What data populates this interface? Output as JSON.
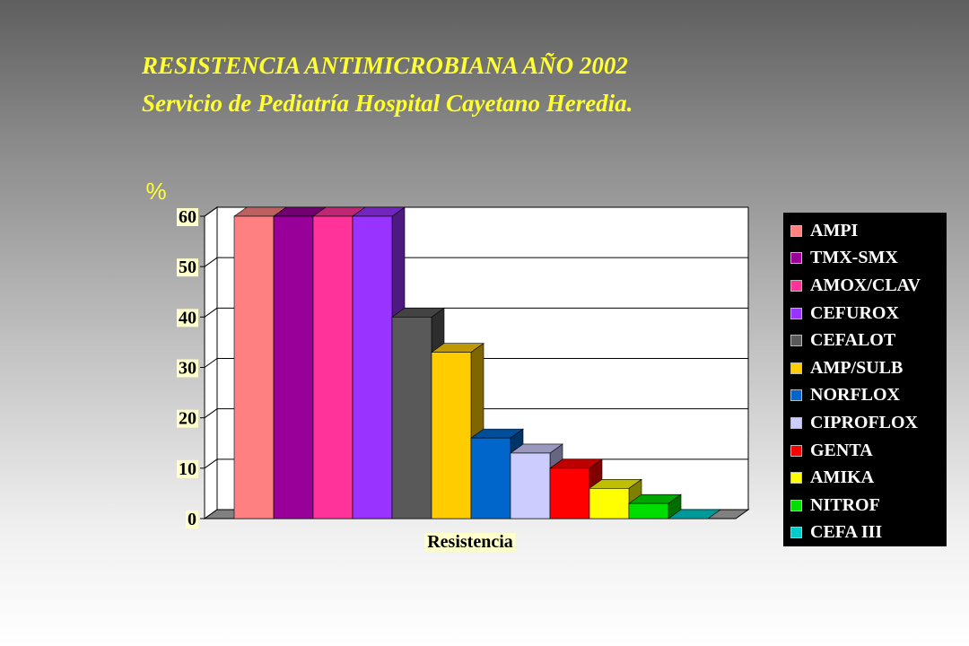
{
  "title": {
    "line1": "RESISTENCIA ANTIMICROBIANA AÑO 2002",
    "line2": "Servicio de Pediatría Hospital Cayetano Heredia."
  },
  "chart_data": {
    "type": "bar",
    "categories": [
      "Resistencia"
    ],
    "ylabel": "%",
    "xlabel": "",
    "ylim": [
      0,
      60
    ],
    "yticks": [
      0,
      10,
      20,
      30,
      40,
      50,
      60
    ],
    "grid": true,
    "legend_position": "right",
    "series": [
      {
        "name": "AMPI",
        "values": [
          60
        ],
        "color": "#ff8080"
      },
      {
        "name": "TMX-SMX",
        "values": [
          60
        ],
        "color": "#990099"
      },
      {
        "name": "AMOX/CLAV",
        "values": [
          60
        ],
        "color": "#ff3399"
      },
      {
        "name": "CEFUROX",
        "values": [
          60
        ],
        "color": "#9933ff"
      },
      {
        "name": "CEFALOT",
        "values": [
          40
        ],
        "color": "#595959"
      },
      {
        "name": "AMP/SULB",
        "values": [
          33
        ],
        "color": "#ffcc00"
      },
      {
        "name": "NORFLOX",
        "values": [
          16
        ],
        "color": "#0066cc"
      },
      {
        "name": "CIPROFLOX",
        "values": [
          13
        ],
        "color": "#ccccff"
      },
      {
        "name": "GENTA",
        "values": [
          10
        ],
        "color": "#ff0000"
      },
      {
        "name": "AMIKA",
        "values": [
          6
        ],
        "color": "#ffff00"
      },
      {
        "name": "NITROF",
        "values": [
          3
        ],
        "color": "#00dd00"
      },
      {
        "name": "CEFA III",
        "values": [
          0
        ],
        "color": "#00cccc"
      }
    ]
  }
}
